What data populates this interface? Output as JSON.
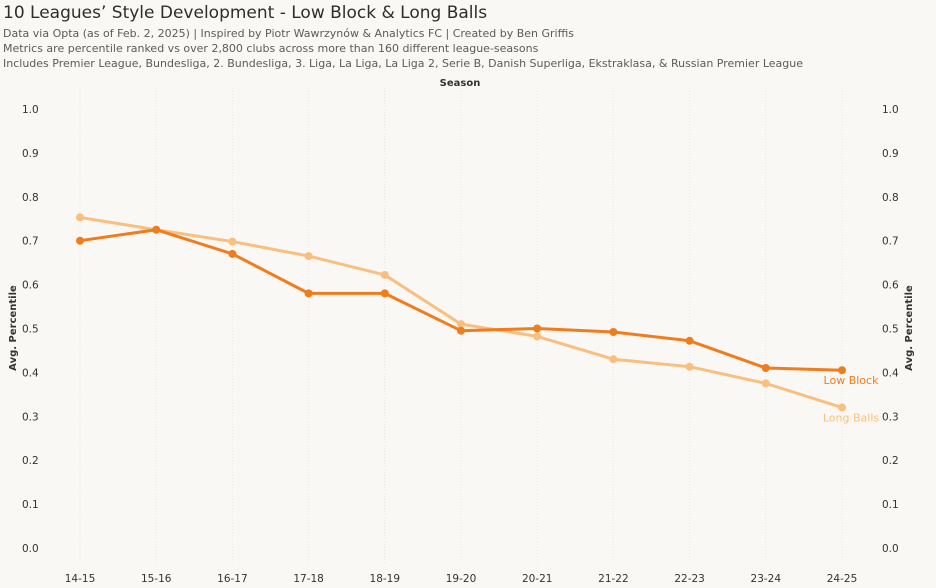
{
  "header": {
    "title": "10 Leagues’ Style Development - Low Block & Long Balls",
    "subtitle_1": "Data via Opta (as of Feb. 2, 2025) | Inspired by Piotr Wawrzynów & Analytics FC | Created by Ben Griffis",
    "subtitle_2": "Metrics are percentile ranked vs over 2,800 clubs across more than 160 different league-seasons",
    "subtitle_3": "Includes Premier League, Bundesliga, 2. Bundesliga, 3. Liga, La Liga, La Liga 2, Serie B, Danish Superliga, Ekstraklasa, & Russian Premier League"
  },
  "colors": {
    "low_block": "#ef7d1e",
    "long_balls": "#f8bf80",
    "grid": "#ebe8e2"
  },
  "chart_data": {
    "type": "line",
    "title": "10 Leagues’ Style Development - Low Block & Long Balls",
    "xlabel": "Season",
    "ylabel": "Avg. Percentile",
    "ylabel_right": "Avg. Percentile",
    "ylim": [
      0.0,
      1.0
    ],
    "y_ticks": [
      "0.0",
      "0.1",
      "0.2",
      "0.3",
      "0.4",
      "0.5",
      "0.6",
      "0.7",
      "0.8",
      "0.9",
      "1.0"
    ],
    "categories": [
      "14-15",
      "15-16",
      "16-17",
      "17-18",
      "18-19",
      "19-20",
      "20-21",
      "21-22",
      "22-23",
      "23-24",
      "24-25"
    ],
    "series": [
      {
        "name": "Low Block",
        "color_key": "low_block",
        "values": [
          0.7,
          0.725,
          0.67,
          0.58,
          0.58,
          0.495,
          0.5,
          0.492,
          0.472,
          0.41,
          0.405
        ]
      },
      {
        "name": "Long Balls",
        "color_key": "long_balls",
        "values": [
          0.753,
          0.725,
          0.698,
          0.665,
          0.622,
          0.51,
          0.482,
          0.43,
          0.413,
          0.375,
          0.32
        ]
      }
    ]
  }
}
